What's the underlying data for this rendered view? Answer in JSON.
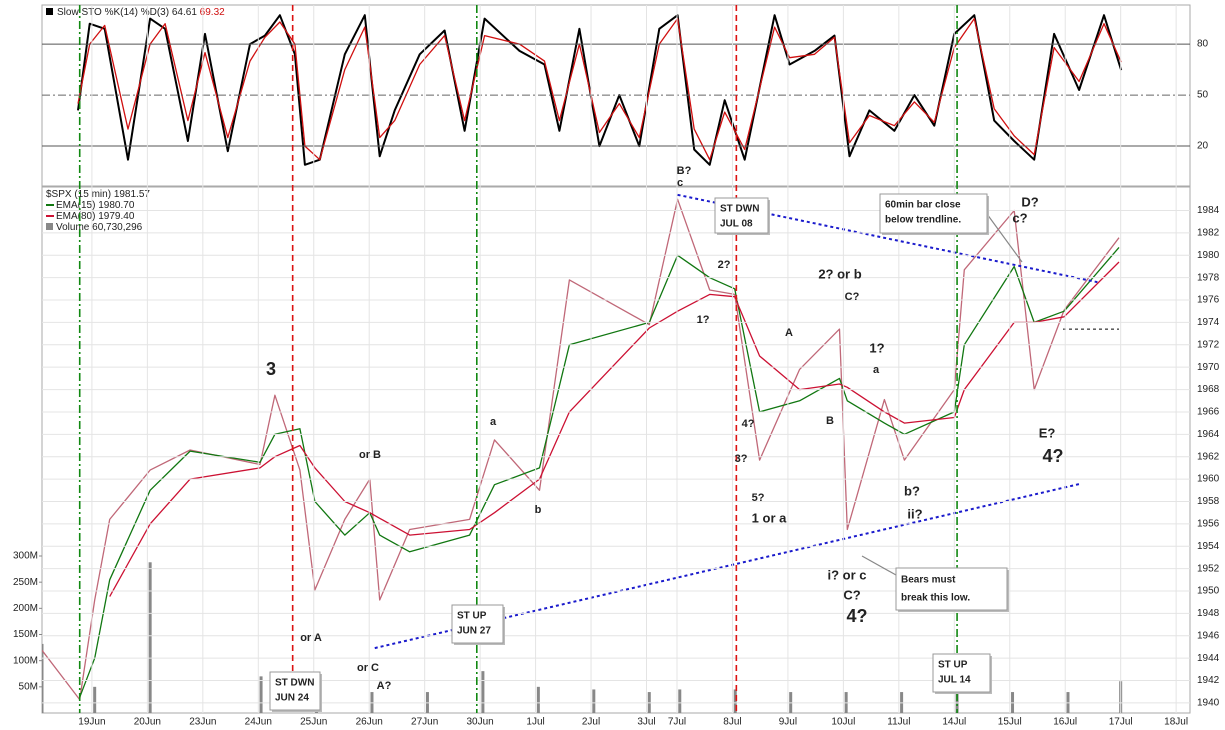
{
  "chart_data": [
    {
      "type": "line",
      "title": "Slow STO %K(14) %D(3)",
      "x": [
        -0.25,
        -0.04,
        0.23,
        0.65,
        1.05,
        1.32,
        1.73,
        2.04,
        2.45,
        2.85,
        3.12,
        3.39,
        3.66,
        3.84,
        4.11,
        4.56,
        4.92,
        5.19,
        5.46,
        5.91,
        6.36,
        6.72,
        7.08,
        7.71,
        8.16,
        8.43,
        8.79,
        9.15,
        9.51,
        9.87,
        10.23,
        10.56,
        10.86,
        11.14,
        11.41,
        11.77,
        12.31,
        12.58,
        13.03,
        13.39,
        13.66,
        14.02,
        14.47,
        14.83,
        15.19,
        15.55,
        15.91,
        16.27,
        16.63,
        16.99,
        17.35,
        17.8,
        18.25,
        18.56
      ],
      "series": [
        {
          "name": "%K(14)",
          "color": "#000000",
          "values": [
            41,
            92,
            89,
            12,
            95,
            89,
            23,
            86,
            17,
            80,
            85,
            97,
            74,
            9,
            12,
            74,
            97,
            14,
            41,
            74,
            88,
            29,
            95,
            76,
            68,
            29,
            89,
            20,
            50,
            20,
            89,
            97,
            18,
            9,
            47,
            12,
            97,
            68,
            76,
            85,
            14,
            41,
            29,
            50,
            32,
            86,
            97,
            35,
            23,
            12,
            86,
            53,
            97,
            64.61
          ]
        },
        {
          "name": "%D(3)",
          "color": "#d01010",
          "values": [
            45,
            80,
            91,
            30,
            80,
            92,
            35,
            75,
            25,
            70,
            84,
            93,
            80,
            20,
            12,
            65,
            90,
            25,
            35,
            68,
            85,
            35,
            85,
            80,
            70,
            35,
            80,
            28,
            45,
            25,
            80,
            95,
            30,
            12,
            40,
            18,
            90,
            72,
            74,
            84,
            22,
            38,
            32,
            46,
            34,
            78,
            95,
            42,
            26,
            15,
            78,
            58,
            92,
            69.32
          ]
        }
      ],
      "xlim": [
        -0.9,
        19.8
      ],
      "ylim": [
        -3.5,
        103
      ],
      "yticks": [
        20,
        50,
        80
      ]
    },
    {
      "type": "line",
      "title": "$SPX (15 min)",
      "x": [
        -0.9,
        -0.22,
        0.05,
        0.32,
        1.05,
        1.77,
        3.03,
        3.3,
        3.75,
        4.02,
        4.56,
        5.01,
        5.19,
        5.73,
        6.81,
        7.26,
        8.07,
        8.61,
        10.05,
        10.56,
        11.14,
        11.59,
        12.04,
        12.76,
        13.48,
        13.62,
        14.29,
        14.65,
        15.55,
        15.73,
        16.63,
        16.99,
        17.53,
        18.52
      ],
      "series": [
        {
          "name": "$SPX (15 min)",
          "color": "#c06878",
          "values": [
            1944.7,
            1940.3,
            1949.2,
            1956.4,
            1960.8,
            1962.6,
            1961.3,
            1967.5,
            1960.8,
            1950.1,
            1956.4,
            1960,
            1949.2,
            1955.5,
            1956.4,
            1963.5,
            1959,
            1977.8,
            1973.8,
            1985,
            1976.9,
            1976.5,
            1961.7,
            1969.8,
            1973.4,
            1955.5,
            1967.1,
            1961.7,
            1968,
            1978.7,
            1984,
            1968,
            1975.1,
            1981.57
          ]
        },
        {
          "name": "EMA(15)",
          "color": "#117711",
          "last_label": "1980.70",
          "values": [
            null,
            1940.5,
            1944,
            1951,
            1959,
            1962.5,
            1961.5,
            1964,
            1964.5,
            1958,
            1955,
            1957,
            1955,
            1953.5,
            1955,
            1959.5,
            1961,
            1972,
            1974,
            1980,
            1978,
            1977,
            1966,
            1967,
            1969,
            1967,
            1965,
            1964,
            1966,
            1972,
            1979,
            1974,
            1975,
            1980.7
          ]
        },
        {
          "name": "EMA(80)",
          "color": "#cc1133",
          "last_label": "1979.40",
          "values": [
            null,
            null,
            null,
            1949.5,
            1956,
            1960,
            1961,
            1962,
            1963,
            1961,
            1958,
            1957,
            1956.5,
            1955,
            1955.5,
            1957,
            1960,
            1966,
            1973.5,
            1975,
            1976.5,
            1976.3,
            1971,
            1968,
            1968.5,
            1968.2,
            1966,
            1965,
            1965.5,
            1968,
            1974,
            1974,
            1974.5,
            1979.4
          ]
        }
      ],
      "volume": {
        "name": "Volume",
        "legend_value": "60,730,296",
        "color": "#888888",
        "x": [
          -0.9,
          0.05,
          1.05,
          3.05,
          4.05,
          5.05,
          6.05,
          7.05,
          8.05,
          9.05,
          10.05,
          10.6,
          11.6,
          12.6,
          13.6,
          14.6,
          15.6,
          16.6,
          17.6,
          18.55
        ],
        "values": [
          132,
          50,
          288,
          70,
          45,
          40,
          40,
          80,
          50,
          45,
          40,
          45,
          45,
          40,
          40,
          40,
          45,
          40,
          40,
          60.73
        ],
        "ylim": [
          0,
          300
        ],
        "yticks": [
          {
            "value": 50,
            "label": "50M"
          },
          {
            "value": 100,
            "label": "100M"
          },
          {
            "value": 150,
            "label": "150M"
          },
          {
            "value": 200,
            "label": "200M"
          },
          {
            "value": 250,
            "label": "250M"
          },
          {
            "value": 300,
            "label": "300M"
          }
        ]
      },
      "xlim": [
        -0.9,
        19.8
      ],
      "ylim": [
        1939.1,
        1986.1
      ],
      "yticks": [
        1940,
        1942,
        1944,
        1946,
        1948,
        1950,
        1952,
        1954,
        1956,
        1958,
        1960,
        1962,
        1964,
        1966,
        1968,
        1970,
        1972,
        1974,
        1976,
        1978,
        1980,
        1982,
        1984
      ],
      "xticks": [
        {
          "value": 0,
          "label": "19Jun"
        },
        {
          "value": 1,
          "label": "20Jun"
        },
        {
          "value": 2,
          "label": "23Jun"
        },
        {
          "value": 3,
          "label": "24Jun"
        },
        {
          "value": 4,
          "label": "25Jun"
        },
        {
          "value": 5,
          "label": "26Jun"
        },
        {
          "value": 6,
          "label": "27Jun"
        },
        {
          "value": 7,
          "label": "30Jun"
        },
        {
          "value": 8,
          "label": "1Jul"
        },
        {
          "value": 9,
          "label": "2Jul"
        },
        {
          "value": 10,
          "label": "3Jul"
        },
        {
          "value": 10.55,
          "label": "7Jul"
        },
        {
          "value": 11.55,
          "label": "8Jul"
        },
        {
          "value": 12.55,
          "label": "9Jul"
        },
        {
          "value": 13.55,
          "label": "10Jul"
        },
        {
          "value": 14.55,
          "label": "11Jul"
        },
        {
          "value": 15.55,
          "label": "14Jul"
        },
        {
          "value": 16.55,
          "label": "15Jul"
        },
        {
          "value": 17.55,
          "label": "16Jul"
        },
        {
          "value": 18.55,
          "label": "17Jul"
        },
        {
          "value": 19.55,
          "label": "18Jul"
        }
      ],
      "grid": true,
      "vlines": [
        {
          "x": -0.22,
          "color": "#118811"
        },
        {
          "x": 3.62,
          "color": "#dd1111"
        },
        {
          "x": 6.94,
          "color": "#118811"
        },
        {
          "x": 11.62,
          "color": "#dd1111"
        },
        {
          "x": 15.6,
          "color": "#118811"
        }
      ],
      "trendlines": [
        {
          "x1": 5.1,
          "y1": 1944.9,
          "x2": 17.84,
          "y2": 1959.6,
          "color": "#1a1acc"
        },
        {
          "x1": 10.56,
          "y1": 1985.4,
          "x2": 18.13,
          "y2": 1977.6,
          "color": "#1a1acc"
        },
        {
          "x1": 17.51,
          "y1": 1973.4,
          "x2": 18.52,
          "y2": 1973.4,
          "color": "#000000"
        }
      ],
      "annotations": [
        {
          "text": "3",
          "color": "#1a1acc"
        },
        {
          "text": "or B",
          "color": "#cc1111"
        },
        {
          "text": "or A",
          "color": "#cc1111"
        },
        {
          "text": "or C",
          "color": "#cc1111"
        },
        {
          "text": "A?",
          "color": "#dd22cc"
        },
        {
          "text": "a",
          "color": "#118811"
        },
        {
          "text": "b",
          "color": "#118811"
        },
        {
          "text": "B?",
          "color": "#dd22cc"
        },
        {
          "text": "c",
          "color": "#118811"
        },
        {
          "text": "2?",
          "color": "#118811"
        },
        {
          "text": "1?",
          "color": "#118811"
        },
        {
          "text": "A",
          "color": "#cc1111"
        },
        {
          "text": "4?",
          "color": "#118811"
        },
        {
          "text": "3?",
          "color": "#118811"
        },
        {
          "text": "5?",
          "color": "#118811"
        },
        {
          "text": "1 or a",
          "color": "#1a1acc"
        },
        {
          "text": "B",
          "color": "#cc1111"
        },
        {
          "text": "2? or b",
          "color": "#1a1acc"
        },
        {
          "text": "C?",
          "color": "#cc1111"
        },
        {
          "text": "1?",
          "color": "#1a1acc"
        },
        {
          "text": "a",
          "color": "#cc1111"
        },
        {
          "text": "b?",
          "color": "#cc1111"
        },
        {
          "text": "ii?",
          "color": "#1a1acc"
        },
        {
          "text": "i? or c",
          "color": "#1a1acc"
        },
        {
          "text": "C?",
          "color": "#dd22cc"
        },
        {
          "text": "4?",
          "color": "#1a1acc"
        },
        {
          "text": "c?",
          "color": "#cc1111"
        },
        {
          "text": "D?",
          "color": "#dd22cc"
        },
        {
          "text": "E?",
          "color": "#dd22cc"
        },
        {
          "text": "4?",
          "color": "#1a1acc"
        }
      ],
      "boxes": [
        {
          "lines": [
            "ST DWN",
            "JUN 24"
          ],
          "color": "#cc1111"
        },
        {
          "lines": [
            "ST DWN",
            "JUL 08"
          ],
          "color": "#cc1111"
        },
        {
          "lines": [
            "ST UP",
            "JUN 27"
          ],
          "color": "#118811"
        },
        {
          "lines": [
            "ST UP",
            "JUL 14"
          ],
          "color": "#118811"
        },
        {
          "lines": [
            "60min bar close",
            "below trendline."
          ],
          "color": "#1a1acc"
        },
        {
          "lines": [
            "Bears must",
            "break this low."
          ],
          "color": "#cc1111"
        }
      ]
    }
  ]
}
